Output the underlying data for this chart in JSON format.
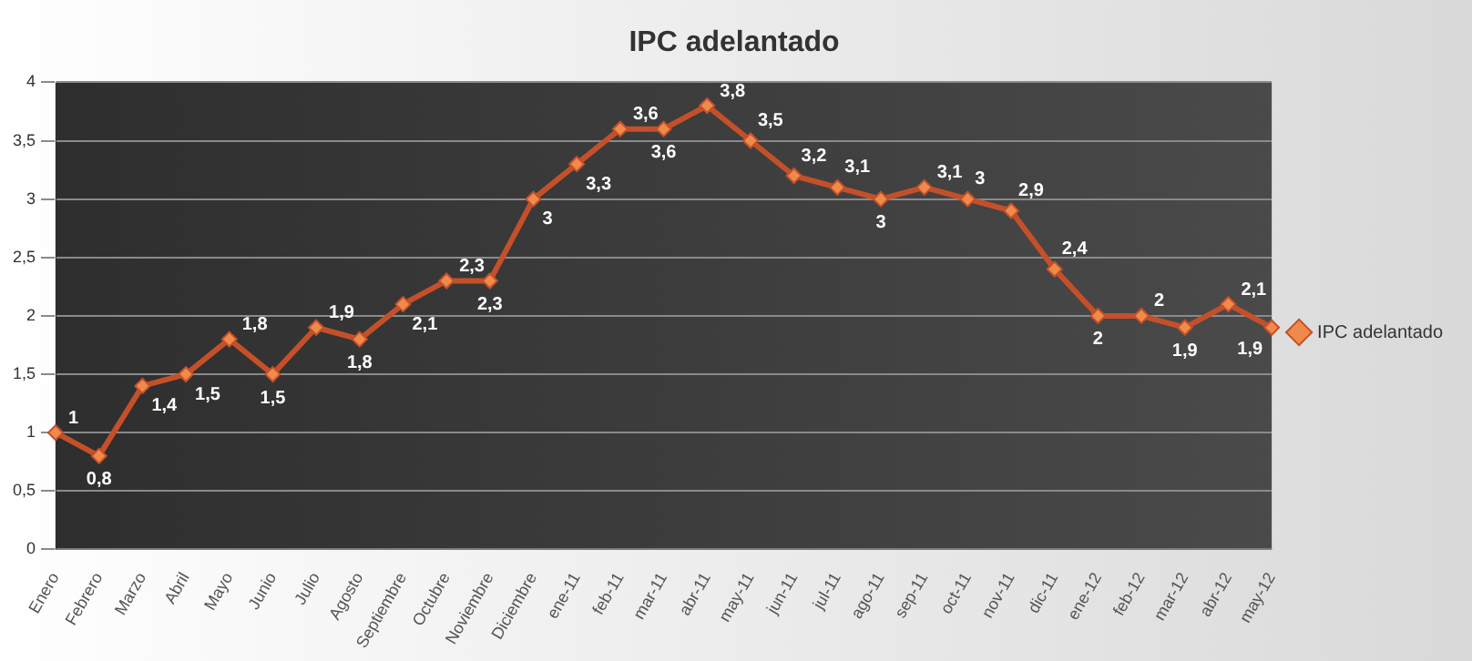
{
  "chart_data": {
    "type": "line",
    "title": "IPC adelantado",
    "categories": [
      "Enero",
      "Febrero",
      "Marzo",
      "Abril",
      "Mayo",
      "Junio",
      "Julio",
      "Agosto",
      "Septiembre",
      "Octubre",
      "Noviembre",
      "Diciembre",
      "ene-11",
      "feb-11",
      "mar-11",
      "abr-11",
      "may-11",
      "jun-11",
      "jul-11",
      "ago-11",
      "sep-11",
      "oct-11",
      "nov-11",
      "dic-11",
      "ene-12",
      "feb-12",
      "mar-12",
      "abr-12",
      "may-12"
    ],
    "series": [
      {
        "name": "IPC adelantado",
        "color": "#c4502a",
        "values": [
          1,
          0.8,
          1.4,
          1.5,
          1.8,
          1.5,
          1.9,
          1.8,
          2.1,
          2.3,
          2.3,
          3,
          3.3,
          3.6,
          3.6,
          3.8,
          3.5,
          3.2,
          3.1,
          3,
          3.1,
          3,
          2.9,
          2.4,
          2,
          2,
          1.9,
          2.1,
          1.9
        ],
        "value_labels": [
          "1",
          "0,8",
          "1,4",
          "1,5",
          "1,8",
          "1,5",
          "1,9",
          "1,8",
          "2,1",
          "2,3",
          "2,3",
          "3",
          "3,3",
          "3,6",
          "3,6",
          "3,8",
          "3,5",
          "3,2",
          "3,1",
          "3",
          "3,1",
          "3",
          "2,9",
          "2,4",
          "2",
          "2",
          "1,9",
          "2,1",
          "1,9"
        ]
      }
    ],
    "ylim": [
      0,
      4
    ],
    "yticks": [
      0,
      {
        "value": 0.5,
        "label": "0,5"
      },
      1,
      {
        "value": 1.5,
        "label": "1,5"
      },
      2,
      {
        "value": 2.5,
        "label": "2,5"
      },
      3,
      {
        "value": 3.5,
        "label": "3,5"
      },
      4
    ],
    "grid": "y",
    "legend": "right",
    "marker": "diamond",
    "line_style": "solid"
  }
}
